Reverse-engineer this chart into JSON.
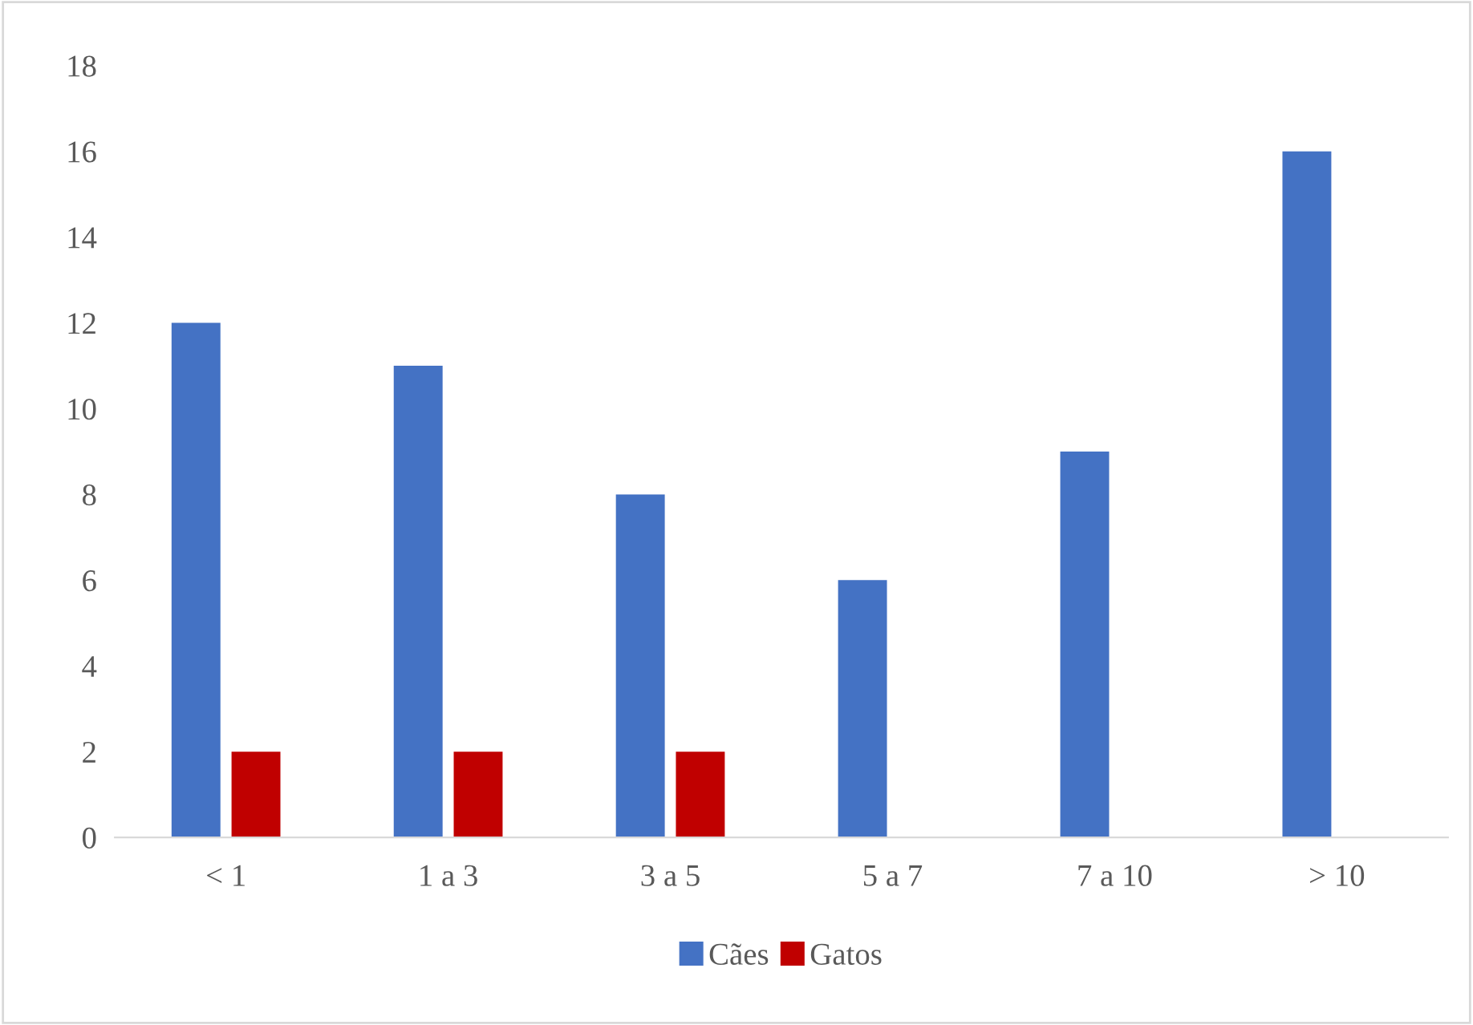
{
  "chart_data": {
    "type": "bar",
    "categories": [
      "< 1",
      "1 a 3",
      "3 a 5",
      "5 a 7",
      "7 a 10",
      "> 10"
    ],
    "series": [
      {
        "name": "Cães",
        "color": "#4472c4",
        "values": [
          12,
          11,
          8,
          6,
          9,
          16
        ]
      },
      {
        "name": "Gatos",
        "color": "#c00000",
        "values": [
          2,
          2,
          2,
          0,
          0,
          0
        ]
      }
    ],
    "ylim": [
      0,
      18
    ],
    "yticks": [
      0,
      2,
      4,
      6,
      8,
      10,
      12,
      14,
      16,
      18
    ],
    "grid": false,
    "legend": "bottom"
  }
}
